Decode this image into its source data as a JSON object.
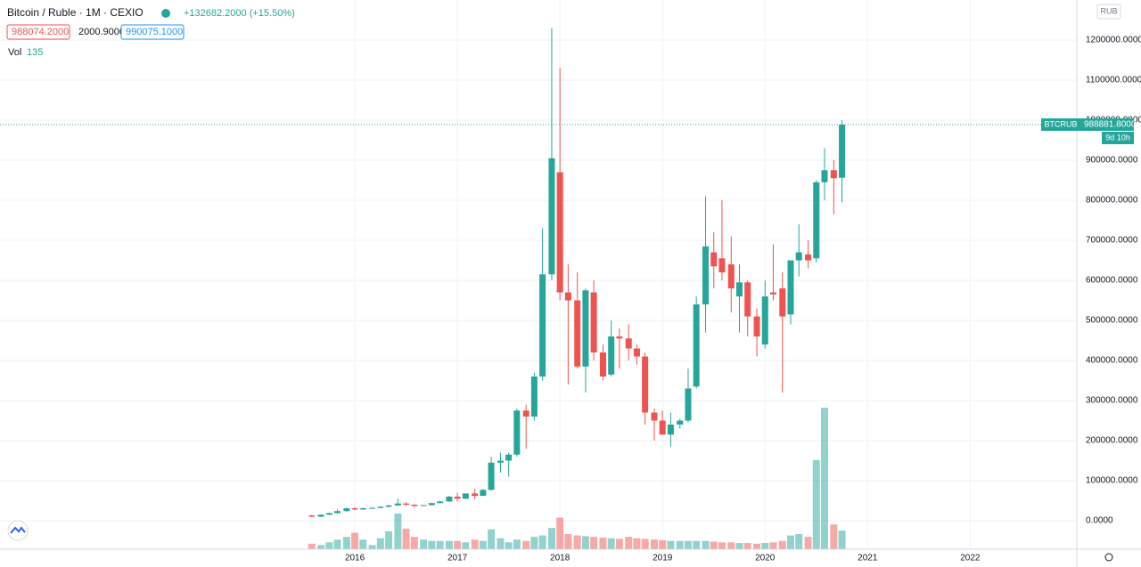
{
  "chart_data": {
    "type": "candlestick",
    "title": "Bitcoin / Ruble · 1M · CEXIO",
    "change": "+132682.2000 (+15.50%)",
    "bid": "988074.2000",
    "spread": "2000.9000",
    "ask": "990075.1000",
    "volume_label": "Vol",
    "currency": "RUB",
    "symbol": "BTCRUB",
    "last_price": {
      "value": 988881.8,
      "label": "988881.8000"
    },
    "countdown": "9d 10h",
    "up_color": "#26a69a",
    "down_color": "#ef5350",
    "grid": true,
    "xlim": [
      2012.54,
      2023.04
    ],
    "xticks": [
      2016,
      2017,
      2018,
      2019,
      2020,
      2021,
      2022
    ],
    "ylim": [
      -71111,
      1300000
    ],
    "yticks": [
      {
        "value": 0,
        "label": "0.0000"
      },
      {
        "value": 100000,
        "label": "100000.0000"
      },
      {
        "value": 200000,
        "label": "200000.0000"
      },
      {
        "value": 300000,
        "label": "300000.0000"
      },
      {
        "value": 400000,
        "label": "400000.0000"
      },
      {
        "value": 500000,
        "label": "500000.0000"
      },
      {
        "value": 600000,
        "label": "600000.0000"
      },
      {
        "value": 700000,
        "label": "700000.0000"
      },
      {
        "value": 800000,
        "label": "800000.0000"
      },
      {
        "value": 900000,
        "label": "900000.0000"
      },
      {
        "value": 1000000,
        "label": "1000000.0000"
      },
      {
        "value": 1100000,
        "label": "1100000.0000"
      },
      {
        "value": 1200000,
        "label": "1200000.0000"
      }
    ],
    "volume_lim": [
      0,
      4000
    ],
    "x": [
      2015.58,
      2015.67,
      2015.75,
      2015.83,
      2015.92,
      2016.0,
      2016.08,
      2016.17,
      2016.25,
      2016.33,
      2016.42,
      2016.5,
      2016.58,
      2016.67,
      2016.75,
      2016.83,
      2016.92,
      2017.0,
      2017.08,
      2017.17,
      2017.25,
      2017.33,
      2017.42,
      2017.5,
      2017.58,
      2017.67,
      2017.75,
      2017.83,
      2017.92,
      2018.0,
      2018.08,
      2018.17,
      2018.25,
      2018.33,
      2018.42,
      2018.5,
      2018.58,
      2018.67,
      2018.75,
      2018.83,
      2018.92,
      2019.0,
      2019.08,
      2019.17,
      2019.25,
      2019.33,
      2019.42,
      2019.5,
      2019.58,
      2019.67,
      2019.75,
      2019.83,
      2019.92,
      2020.0,
      2020.08,
      2020.17,
      2020.25,
      2020.33,
      2020.42,
      2020.5,
      2020.58,
      2020.67,
      2020.75
    ],
    "open": [
      13000,
      10000,
      15000,
      19000,
      24000,
      31000,
      28000,
      31000,
      32000,
      35000,
      38000,
      43000,
      40000,
      37000,
      39000,
      44000,
      48000,
      60000,
      55000,
      68000,
      62000,
      77000,
      145000,
      150000,
      165000,
      275000,
      260000,
      360000,
      615000,
      870000,
      570000,
      550000,
      385000,
      570000,
      420000,
      365000,
      460000,
      455000,
      430000,
      410000,
      270000,
      250000,
      215000,
      240000,
      250000,
      335000,
      540000,
      670000,
      655000,
      640000,
      560000,
      595000,
      510000,
      440000,
      570000,
      580000,
      515000,
      650000,
      665000,
      655000,
      845000,
      875000,
      856200
    ],
    "high": [
      15000,
      16000,
      20000,
      28000,
      33000,
      34000,
      33000,
      34000,
      36000,
      40000,
      55000,
      46000,
      41000,
      39000,
      45000,
      50000,
      62000,
      70000,
      68000,
      80000,
      80000,
      160000,
      170000,
      170000,
      280000,
      290000,
      370000,
      730000,
      1230000,
      1130000,
      640000,
      620000,
      580000,
      600000,
      440000,
      500000,
      480000,
      490000,
      440000,
      420000,
      280000,
      275000,
      270000,
      255000,
      380000,
      560000,
      810000,
      720000,
      800000,
      710000,
      640000,
      600000,
      530000,
      600000,
      690000,
      620000,
      650000,
      740000,
      700000,
      850000,
      930000,
      900000,
      1000000
    ],
    "low": [
      9000,
      9000,
      14000,
      17000,
      22000,
      26000,
      27000,
      30000,
      31000,
      33000,
      37000,
      37000,
      34000,
      36000,
      38000,
      43000,
      47000,
      48000,
      54000,
      53000,
      62000,
      75000,
      120000,
      110000,
      160000,
      180000,
      250000,
      350000,
      600000,
      550000,
      340000,
      380000,
      320000,
      400000,
      350000,
      360000,
      380000,
      400000,
      390000,
      240000,
      200000,
      215000,
      185000,
      230000,
      245000,
      330000,
      470000,
      580000,
      600000,
      520000,
      470000,
      460000,
      410000,
      430000,
      550000,
      320000,
      490000,
      610000,
      630000,
      645000,
      800000,
      765000,
      795000
    ],
    "close": [
      10000,
      15000,
      19000,
      24000,
      31000,
      28000,
      31000,
      32000,
      35000,
      38000,
      43000,
      40000,
      37000,
      39000,
      44000,
      48000,
      60000,
      55000,
      68000,
      62000,
      77000,
      145000,
      150000,
      165000,
      275000,
      260000,
      360000,
      615000,
      905000,
      570000,
      550000,
      385000,
      575000,
      420000,
      360000,
      460000,
      455000,
      430000,
      410000,
      270000,
      250000,
      215000,
      240000,
      250000,
      330000,
      540000,
      685000,
      635000,
      620000,
      580000,
      595000,
      510000,
      460000,
      560000,
      565000,
      510000,
      650000,
      670000,
      650000,
      845000,
      875000,
      855000,
      988882
    ],
    "volume": [
      40,
      30,
      50,
      70,
      90,
      120,
      70,
      30,
      80,
      130,
      260,
      150,
      90,
      70,
      60,
      60,
      60,
      60,
      50,
      70,
      60,
      145,
      80,
      50,
      70,
      60,
      90,
      100,
      155,
      230,
      110,
      100,
      95,
      90,
      85,
      80,
      75,
      90,
      80,
      75,
      70,
      65,
      60,
      60,
      60,
      60,
      60,
      55,
      50,
      50,
      45,
      45,
      40,
      45,
      50,
      60,
      100,
      110,
      90,
      650,
      1030,
      180,
      135
    ]
  }
}
